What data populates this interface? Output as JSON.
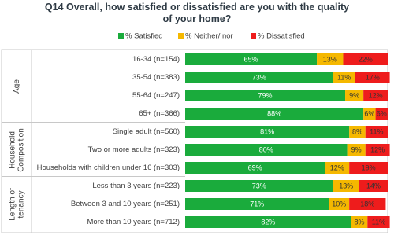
{
  "chart_data": {
    "type": "stacked-bar",
    "title": "Q14 Overall, how satisfied or dissatisfied are you with the quality of your home?",
    "groups": [
      {
        "name": "Age",
        "categories": [
          "16-34 (n=154)",
          "35-54 (n=383)",
          "55-64 (n=247)",
          "65+ (n=366)"
        ]
      },
      {
        "name": "Household Composition",
        "categories": [
          "Single adult (n=560)",
          "Two or more adults (n=323)",
          "Households with children under 16 (n=303)"
        ]
      },
      {
        "name": "Length of tenancy",
        "categories": [
          "Less than 3 years (n=223)",
          "Between 3 and 10 years (n=251)",
          "More than 10 years (n=712)"
        ]
      }
    ],
    "series": [
      {
        "name": "% Satisfied",
        "color": "#1aab3c",
        "values": [
          65,
          73,
          79,
          88,
          81,
          80,
          69,
          73,
          71,
          82
        ],
        "value_labels": [
          "65%",
          "73%",
          "79%",
          "88%",
          "81%",
          "80%",
          "69%",
          "73%",
          "71%",
          "82%"
        ]
      },
      {
        "name": "% Neither/ nor",
        "color": "#f5b800",
        "values": [
          13,
          11,
          9,
          6,
          8,
          9,
          12,
          13,
          10,
          8
        ],
        "value_labels": [
          "13%",
          "11%",
          "9%",
          "6%",
          "8%",
          "9%",
          "12%",
          "13%",
          "10%",
          "8%"
        ]
      },
      {
        "name": "% Dissatisfied",
        "color": "#ee1c1c",
        "values": [
          22,
          17,
          12,
          6,
          11,
          12,
          19,
          14,
          18,
          11
        ],
        "value_labels": [
          "22%",
          "17%",
          "12%",
          "6%",
          "11%",
          "12%",
          "19%",
          "14%",
          "18%",
          "11%"
        ]
      }
    ]
  }
}
